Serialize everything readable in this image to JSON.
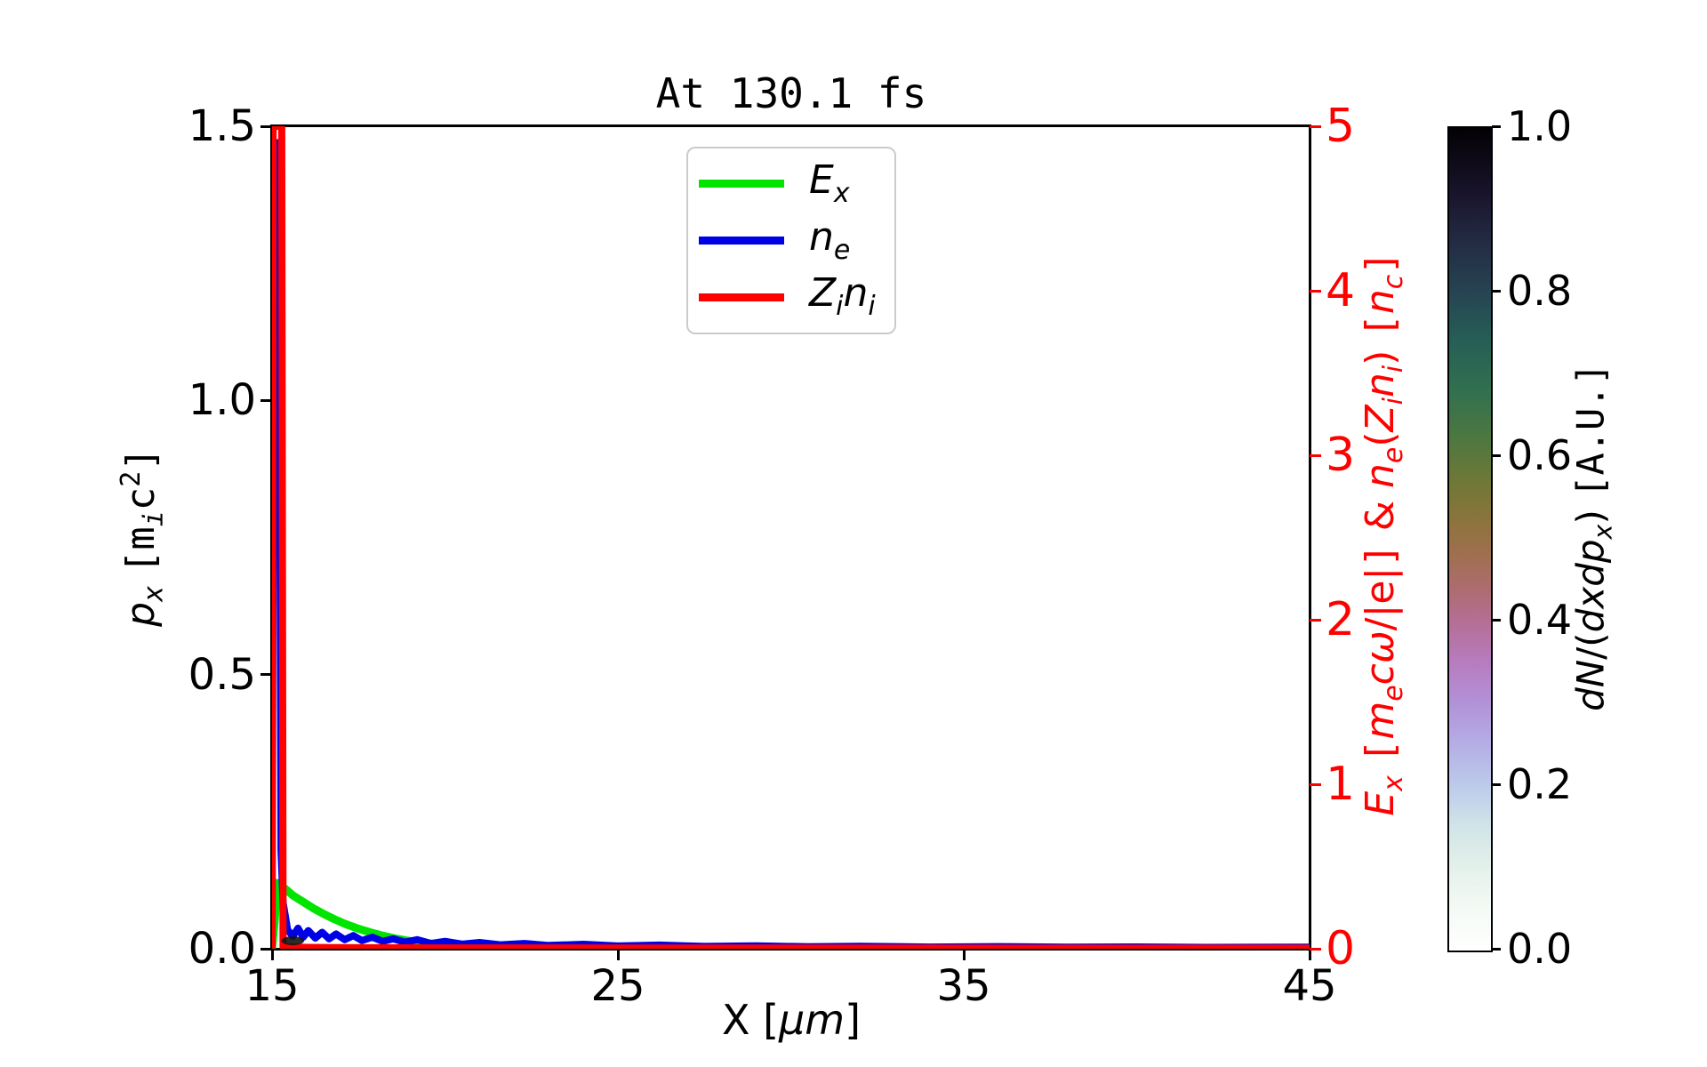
{
  "chart_data": {
    "type": "line",
    "title": "At 130.1 fs",
    "x_axis": {
      "label_html": "X [<i>μm</i>]",
      "lim": [
        15,
        45
      ],
      "ticks": [
        "15",
        "25",
        "35",
        "45"
      ]
    },
    "y_left": {
      "label_html": "<i>p<sub>x</sub></i> <span class=\"mono\">[m<sub><i>i</i></sub>c<sup>2</sup>]</span>",
      "lim": [
        0,
        1.5
      ],
      "ticks": [
        "1.5",
        "1.0",
        "0.5",
        "0.0"
      ]
    },
    "y_right": {
      "label_html": "<i>E<sub>x</sub></i> <span class=\"mono\">[</span><i>m<sub>e</sub>cω</i>/|e|<span class=\"mono\">]</span> &amp; <i>n<sub>e</sub></i>(<i>Z<sub>i</sub>n<sub>i</sub></i>) <span class=\"mono\">[</span><i>n<sub>c</sub></i><span class=\"mono\">]</span>",
      "lim": [
        0,
        5
      ],
      "ticks": [
        "5",
        "4",
        "3",
        "2",
        "1",
        "0"
      ],
      "color": "#ff0000"
    },
    "legend": [
      {
        "label_html": "<i>E<sub>x</sub></i>",
        "color": "#00e400"
      },
      {
        "label_html": "<i>n<sub>e</sub></i>",
        "color": "#0000e6"
      },
      {
        "label_html": "<i>Z<sub>i</sub>n<sub>i</sub></i>",
        "color": "#ff0000"
      }
    ],
    "series": [
      {
        "name": "Ex",
        "axis": "right",
        "color": "#00e400",
        "width": 9,
        "points": [
          [
            15.0,
            0.001
          ],
          [
            15.08,
            0.18
          ],
          [
            15.15,
            0.4
          ],
          [
            15.35,
            0.37
          ],
          [
            15.6,
            0.325
          ],
          [
            15.9,
            0.285
          ],
          [
            16.2,
            0.245
          ],
          [
            16.5,
            0.21
          ],
          [
            16.8,
            0.18
          ],
          [
            17.1,
            0.152
          ],
          [
            17.45,
            0.125
          ],
          [
            17.8,
            0.102
          ],
          [
            18.15,
            0.082
          ],
          [
            18.5,
            0.065
          ],
          [
            18.9,
            0.05
          ],
          [
            19.3,
            0.038
          ],
          [
            19.7,
            0.029
          ],
          [
            20.2,
            0.021
          ],
          [
            20.7,
            0.015
          ],
          [
            21.3,
            0.01
          ],
          [
            22.0,
            0.007
          ],
          [
            23.0,
            0.0045
          ],
          [
            24.0,
            0.003
          ],
          [
            25.5,
            0.002
          ],
          [
            27.0,
            0.0013
          ],
          [
            29.0,
            0.0008
          ],
          [
            32.0,
            0.0005
          ],
          [
            36.0,
            0.0003
          ],
          [
            40.0,
            0.0002
          ],
          [
            45.0,
            0.0001
          ]
        ]
      },
      {
        "name": "ne",
        "axis": "right",
        "color": "#0000e6",
        "width": 8,
        "points": [
          [
            15.0,
            0.002
          ],
          [
            15.06,
            4.9
          ],
          [
            15.2,
            4.9
          ],
          [
            15.26,
            0.6
          ],
          [
            15.32,
            0.28
          ],
          [
            15.45,
            0.115
          ],
          [
            15.6,
            0.075
          ],
          [
            15.75,
            0.125
          ],
          [
            15.9,
            0.07
          ],
          [
            16.05,
            0.11
          ],
          [
            16.25,
            0.065
          ],
          [
            16.45,
            0.1
          ],
          [
            16.65,
            0.06
          ],
          [
            16.85,
            0.09
          ],
          [
            17.1,
            0.055
          ],
          [
            17.35,
            0.08
          ],
          [
            17.6,
            0.05
          ],
          [
            17.9,
            0.07
          ],
          [
            18.2,
            0.045
          ],
          [
            18.5,
            0.06
          ],
          [
            18.85,
            0.04
          ],
          [
            19.2,
            0.055
          ],
          [
            19.6,
            0.032
          ],
          [
            20.0,
            0.045
          ],
          [
            20.5,
            0.028
          ],
          [
            21.0,
            0.038
          ],
          [
            21.6,
            0.024
          ],
          [
            22.3,
            0.032
          ],
          [
            23.0,
            0.02
          ],
          [
            24.0,
            0.027
          ],
          [
            25.0,
            0.017
          ],
          [
            26.2,
            0.022
          ],
          [
            27.5,
            0.014
          ],
          [
            29.0,
            0.018
          ],
          [
            30.5,
            0.012
          ],
          [
            32.0,
            0.015
          ],
          [
            34.0,
            0.01
          ],
          [
            36.0,
            0.013
          ],
          [
            38.0,
            0.009
          ],
          [
            40.0,
            0.011
          ],
          [
            42.0,
            0.008
          ],
          [
            45.0,
            0.009
          ]
        ]
      },
      {
        "name": "Zini",
        "axis": "right",
        "color": "#ff0000",
        "width": 8,
        "points": [
          [
            15.0,
            0.002
          ],
          [
            15.03,
            5.0
          ],
          [
            15.28,
            5.0
          ],
          [
            15.32,
            0.012
          ],
          [
            16.0,
            0.008
          ],
          [
            17.0,
            0.007
          ],
          [
            18.0,
            0.006
          ],
          [
            20.0,
            0.005
          ],
          [
            23.0,
            0.005
          ],
          [
            26.0,
            0.004
          ],
          [
            30.0,
            0.004
          ],
          [
            34.0,
            0.004
          ],
          [
            38.0,
            0.003
          ],
          [
            42.0,
            0.003
          ],
          [
            45.0,
            0.003
          ]
        ]
      }
    ],
    "phase_space": {
      "x_center": 15.6,
      "x_halfwidth": 0.33,
      "p_center": 0.01,
      "color": "#141414"
    },
    "colorbar": {
      "label_html": "<i>dN</i>/(<i>dxdp<sub>x</sub></i>) <span class=\"mono\">[A.U.]</span>",
      "lim": [
        0.0,
        1.0
      ],
      "ticks": [
        "1.0",
        "0.8",
        "0.6",
        "0.4",
        "0.2",
        "0.0"
      ],
      "gradient": [
        [
          0.0,
          "#ffffff"
        ],
        [
          0.05,
          "#f4faf5"
        ],
        [
          0.1,
          "#e4f1ea"
        ],
        [
          0.15,
          "#d2e4e8"
        ],
        [
          0.2,
          "#bccbea"
        ],
        [
          0.25,
          "#b5aee6"
        ],
        [
          0.3,
          "#b292d8"
        ],
        [
          0.35,
          "#b77cc0"
        ],
        [
          0.4,
          "#b56f94"
        ],
        [
          0.44,
          "#ad6c70"
        ],
        [
          0.48,
          "#a06f50"
        ],
        [
          0.52,
          "#8d743c"
        ],
        [
          0.57,
          "#6f7836"
        ],
        [
          0.62,
          "#4f7840"
        ],
        [
          0.68,
          "#32704f"
        ],
        [
          0.74,
          "#265f55"
        ],
        [
          0.8,
          "#264452"
        ],
        [
          0.86,
          "#232c44"
        ],
        [
          0.92,
          "#19142c"
        ],
        [
          1.0,
          "#030104"
        ]
      ]
    }
  }
}
